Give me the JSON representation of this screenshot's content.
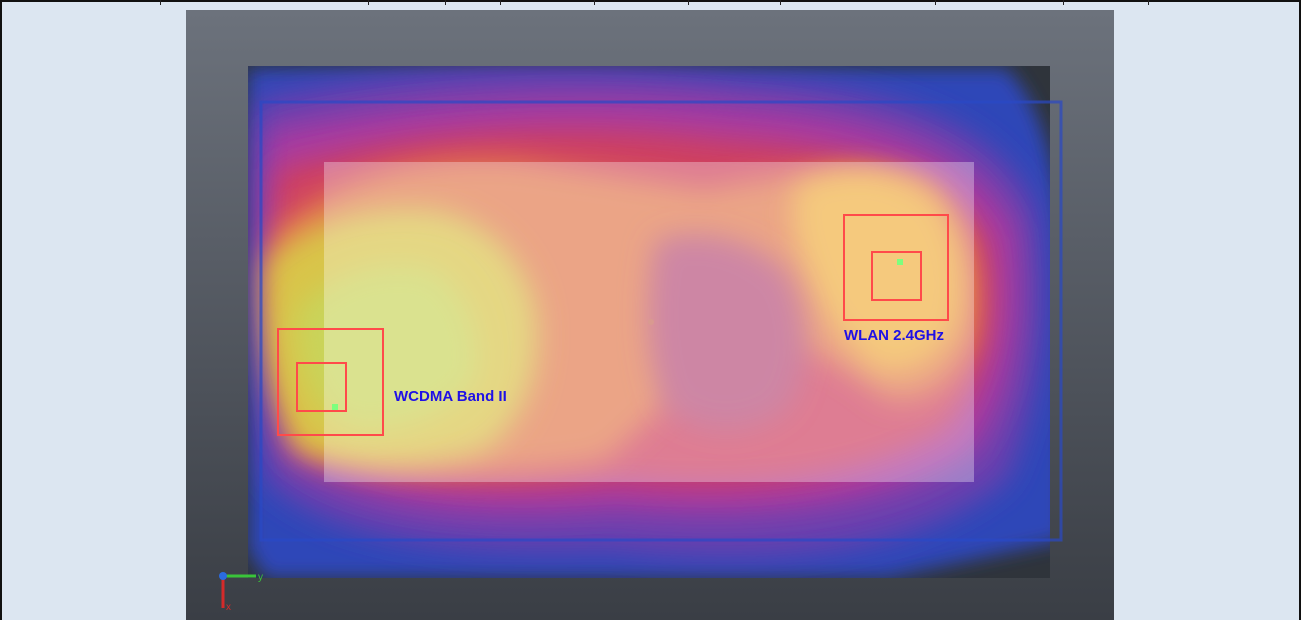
{
  "annotations": {
    "wcdma_label": "WCDMA Band II",
    "wlan_label": "WLAN 2.4GHz"
  },
  "axes": {
    "y_label": "y",
    "x_label": "x"
  },
  "colors": {
    "page_background": "#dce6f1",
    "viewport_background_top": "#6b717b",
    "viewport_background_bottom": "#3b3f46",
    "marker_box": "#ff4a4a",
    "marker_point": "#7dff7d",
    "label_text": "#1f10e6"
  }
}
